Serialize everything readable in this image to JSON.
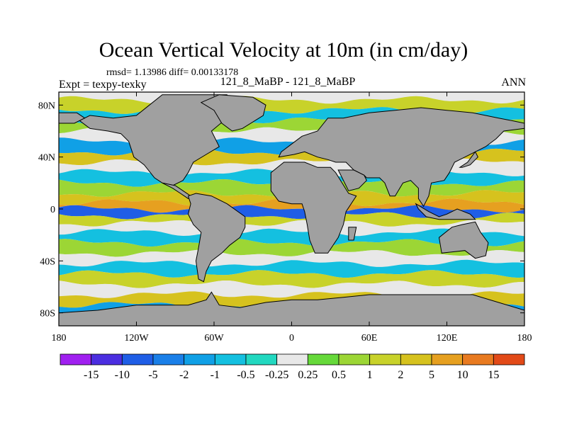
{
  "chart_data": {
    "type": "heatmap",
    "title": "Ocean Vertical Velocity at 10m (in cm/day)",
    "stats_text": "rmsd= 1.13986 diff= 0.00133178",
    "left_label": "Expt = texpy-texky",
    "center_label": "121_8_MaBP - 121_8_MaBP",
    "right_label": "ANN",
    "x_range": [
      -180,
      180
    ],
    "y_range": [
      -90,
      90
    ],
    "x_ticks": [
      {
        "value": -180,
        "label": "180"
      },
      {
        "value": -120,
        "label": "120W"
      },
      {
        "value": -60,
        "label": "60W"
      },
      {
        "value": 0,
        "label": "0"
      },
      {
        "value": 60,
        "label": "60E"
      },
      {
        "value": 120,
        "label": "120E"
      },
      {
        "value": 180,
        "label": "180"
      }
    ],
    "y_ticks": [
      {
        "value": 80,
        "label": "80N"
      },
      {
        "value": 40,
        "label": "40N"
      },
      {
        "value": 0,
        "label": "0"
      },
      {
        "value": -40,
        "label": "40S"
      },
      {
        "value": -80,
        "label": "80S"
      }
    ],
    "colorbar": {
      "labels": [
        "-15",
        "-10",
        "-5",
        "-2",
        "-1",
        "-0.5",
        "-0.25",
        "0.25",
        "0.5",
        "1",
        "2",
        "5",
        "10",
        "15"
      ],
      "colors": [
        "#a020f0",
        "#4b2ee0",
        "#1f5ee6",
        "#1a7fe8",
        "#10a0e6",
        "#14c0e0",
        "#22d8c0",
        "#e8e8e8",
        "#66d93a",
        "#9cd635",
        "#c8d22a",
        "#d6c21e",
        "#e6a020",
        "#e87a20",
        "#e24a18"
      ]
    },
    "land_color": "#a0a0a0",
    "ocean_bands": [
      {
        "lat": 88,
        "value": 0.1
      },
      {
        "lat": 80,
        "value": 1
      },
      {
        "lat": 72,
        "value": -1
      },
      {
        "lat": 64,
        "value": 0.6
      },
      {
        "lat": 56,
        "value": 0
      },
      {
        "lat": 48,
        "value": -1.5
      },
      {
        "lat": 40,
        "value": 2
      },
      {
        "lat": 32,
        "value": 0.1
      },
      {
        "lat": 24,
        "value": -0.6
      },
      {
        "lat": 16,
        "value": 0.7
      },
      {
        "lat": 8,
        "value": 3
      },
      {
        "lat": 2,
        "value": 6
      },
      {
        "lat": -2,
        "value": -6
      },
      {
        "lat": -8,
        "value": 1.5
      },
      {
        "lat": -14,
        "value": 0
      },
      {
        "lat": -22,
        "value": -0.7
      },
      {
        "lat": -30,
        "value": 0.8
      },
      {
        "lat": -38,
        "value": 0
      },
      {
        "lat": -46,
        "value": -0.6
      },
      {
        "lat": -54,
        "value": 1.5
      },
      {
        "lat": -62,
        "value": 0.1
      },
      {
        "lat": -70,
        "value": 2.5
      },
      {
        "lat": -78,
        "value": -1.5
      },
      {
        "lat": -86,
        "value": 0.6
      }
    ],
    "land_masks": [
      {
        "name": "North America",
        "points": [
          [
            -100,
            88
          ],
          [
            -50,
            88
          ],
          [
            -50,
            70
          ],
          [
            -62,
            60
          ],
          [
            -56,
            48
          ],
          [
            -66,
            42
          ],
          [
            -76,
            36
          ],
          [
            -80,
            28
          ],
          [
            -84,
            22
          ],
          [
            -92,
            18
          ],
          [
            -100,
            20
          ],
          [
            -106,
            24
          ],
          [
            -114,
            34
          ],
          [
            -122,
            40
          ],
          [
            -126,
            52
          ],
          [
            -132,
            58
          ],
          [
            -142,
            60
          ],
          [
            -156,
            62
          ],
          [
            -164,
            68
          ],
          [
            -156,
            72
          ],
          [
            -138,
            70
          ],
          [
            -120,
            72
          ],
          [
            -110,
            80
          ]
        ]
      },
      {
        "name": "Alaska",
        "points": [
          [
            -180,
            74
          ],
          [
            -166,
            74
          ],
          [
            -160,
            70
          ],
          [
            -168,
            66
          ],
          [
            -180,
            66
          ]
        ]
      },
      {
        "name": "Greenland",
        "points": [
          [
            -70,
            82
          ],
          [
            -56,
            88
          ],
          [
            -30,
            86
          ],
          [
            -20,
            80
          ],
          [
            -22,
            72
          ],
          [
            -38,
            62
          ],
          [
            -46,
            60
          ],
          [
            -54,
            66
          ],
          [
            -60,
            76
          ]
        ]
      },
      {
        "name": "Central America",
        "points": [
          [
            -100,
            20
          ],
          [
            -92,
            16
          ],
          [
            -86,
            12
          ],
          [
            -80,
            8
          ],
          [
            -78,
            10
          ],
          [
            -84,
            14
          ],
          [
            -90,
            18
          ]
        ]
      },
      {
        "name": "South America",
        "points": [
          [
            -80,
            10
          ],
          [
            -74,
            12
          ],
          [
            -62,
            10
          ],
          [
            -50,
            4
          ],
          [
            -36,
            -6
          ],
          [
            -36,
            -14
          ],
          [
            -40,
            -22
          ],
          [
            -48,
            -28
          ],
          [
            -54,
            -34
          ],
          [
            -62,
            -40
          ],
          [
            -66,
            -48
          ],
          [
            -68,
            -56
          ],
          [
            -72,
            -54
          ],
          [
            -74,
            -40
          ],
          [
            -72,
            -30
          ],
          [
            -70,
            -18
          ],
          [
            -76,
            -12
          ],
          [
            -80,
            -4
          ],
          [
            -78,
            4
          ]
        ]
      },
      {
        "name": "Eurasia",
        "points": [
          [
            -10,
            40
          ],
          [
            -8,
            44
          ],
          [
            0,
            50
          ],
          [
            8,
            56
          ],
          [
            20,
            60
          ],
          [
            28,
            70
          ],
          [
            40,
            70
          ],
          [
            60,
            74
          ],
          [
            80,
            76
          ],
          [
            100,
            78
          ],
          [
            120,
            76
          ],
          [
            140,
            74
          ],
          [
            160,
            70
          ],
          [
            170,
            68
          ],
          [
            180,
            66
          ],
          [
            180,
            62
          ],
          [
            164,
            60
          ],
          [
            158,
            54
          ],
          [
            150,
            48
          ],
          [
            142,
            44
          ],
          [
            134,
            40
          ],
          [
            126,
            36
          ],
          [
            122,
            28
          ],
          [
            118,
            22
          ],
          [
            108,
            20
          ],
          [
            106,
            10
          ],
          [
            102,
            2
          ],
          [
            98,
            8
          ],
          [
            98,
            16
          ],
          [
            92,
            22
          ],
          [
            86,
            20
          ],
          [
            80,
            10
          ],
          [
            76,
            10
          ],
          [
            72,
            20
          ],
          [
            68,
            24
          ],
          [
            58,
            24
          ],
          [
            56,
            26
          ],
          [
            48,
            30
          ],
          [
            42,
            36
          ],
          [
            34,
            36
          ],
          [
            28,
            38
          ],
          [
            20,
            40
          ],
          [
            10,
            44
          ],
          [
            2,
            42
          ]
        ]
      },
      {
        "name": "Arabia",
        "points": [
          [
            36,
            30
          ],
          [
            44,
            14
          ],
          [
            52,
            16
          ],
          [
            58,
            22
          ],
          [
            56,
            26
          ],
          [
            48,
            30
          ]
        ]
      },
      {
        "name": "Africa",
        "points": [
          [
            -16,
            28
          ],
          [
            -16,
            14
          ],
          [
            -10,
            6
          ],
          [
            0,
            4
          ],
          [
            8,
            4
          ],
          [
            10,
            -2
          ],
          [
            12,
            -12
          ],
          [
            14,
            -24
          ],
          [
            18,
            -34
          ],
          [
            28,
            -34
          ],
          [
            36,
            -22
          ],
          [
            40,
            -12
          ],
          [
            42,
            -2
          ],
          [
            50,
            10
          ],
          [
            44,
            12
          ],
          [
            34,
            28
          ],
          [
            30,
            32
          ],
          [
            20,
            32
          ],
          [
            10,
            36
          ],
          [
            -6,
            36
          ]
        ]
      },
      {
        "name": "Madagascar",
        "points": [
          [
            44,
            -14
          ],
          [
            50,
            -14
          ],
          [
            48,
            -24
          ],
          [
            44,
            -24
          ]
        ]
      },
      {
        "name": "Indonesia",
        "points": [
          [
            96,
            4
          ],
          [
            106,
            -2
          ],
          [
            114,
            -6
          ],
          [
            120,
            -4
          ],
          [
            128,
            0
          ],
          [
            138,
            -4
          ],
          [
            142,
            -8
          ],
          [
            130,
            -8
          ],
          [
            114,
            -8
          ],
          [
            104,
            -6
          ],
          [
            98,
            0
          ]
        ]
      },
      {
        "name": "Japan",
        "points": [
          [
            130,
            32
          ],
          [
            136,
            36
          ],
          [
            142,
            44
          ],
          [
            144,
            40
          ],
          [
            138,
            34
          ],
          [
            132,
            32
          ]
        ]
      },
      {
        "name": "Australia",
        "points": [
          [
            114,
            -22
          ],
          [
            124,
            -14
          ],
          [
            132,
            -12
          ],
          [
            142,
            -10
          ],
          [
            146,
            -18
          ],
          [
            152,
            -26
          ],
          [
            150,
            -36
          ],
          [
            142,
            -38
          ],
          [
            134,
            -32
          ],
          [
            116,
            -34
          ]
        ]
      },
      {
        "name": "Antarctica",
        "points": [
          [
            -180,
            -90
          ],
          [
            180,
            -90
          ],
          [
            180,
            -78
          ],
          [
            160,
            -72
          ],
          [
            140,
            -66
          ],
          [
            120,
            -66
          ],
          [
            100,
            -66
          ],
          [
            80,
            -66
          ],
          [
            60,
            -66
          ],
          [
            40,
            -68
          ],
          [
            20,
            -70
          ],
          [
            0,
            -70
          ],
          [
            -20,
            -72
          ],
          [
            -40,
            -76
          ],
          [
            -56,
            -74
          ],
          [
            -62,
            -64
          ],
          [
            -66,
            -70
          ],
          [
            -80,
            -74
          ],
          [
            -100,
            -74
          ],
          [
            -120,
            -74
          ],
          [
            -150,
            -78
          ],
          [
            -180,
            -80
          ]
        ]
      }
    ]
  }
}
